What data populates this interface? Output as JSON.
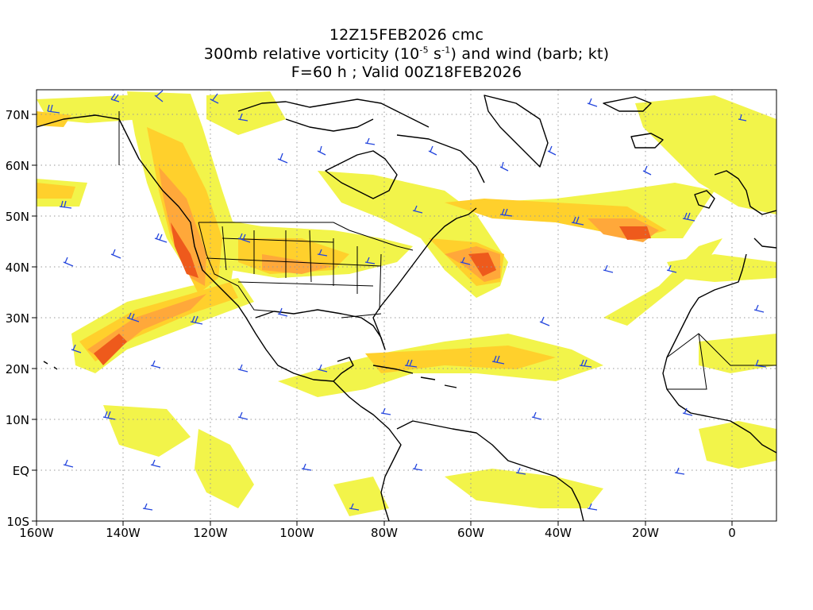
{
  "header": {
    "line1": "12Z15FEB2026 cmc",
    "line2_pre": "300mb relative vorticity (10",
    "line2_exp1": "-5",
    "line2_mid": " s",
    "line2_exp2": "-1",
    "line2_post": ") and wind (barb; kt)",
    "line3": "F=60 h ; Valid 00Z18FEB2026"
  },
  "axes": {
    "lon_labels": [
      "160W",
      "140W",
      "120W",
      "100W",
      "80W",
      "60W",
      "40W",
      "20W",
      "0"
    ],
    "lat_labels": [
      "70N",
      "60N",
      "50N",
      "40N",
      "30N",
      "20N",
      "10N",
      "EQ",
      "10S"
    ]
  },
  "colors": {
    "shade_light": "#f2f44a",
    "shade_yellow": "#ffe400",
    "shade_orange": "#ffa83a",
    "shade_deep": "#ee5a1c",
    "shade_red": "#d8311c",
    "barb": "#2244dd",
    "grid": "#999999",
    "coast": "#000000"
  }
}
